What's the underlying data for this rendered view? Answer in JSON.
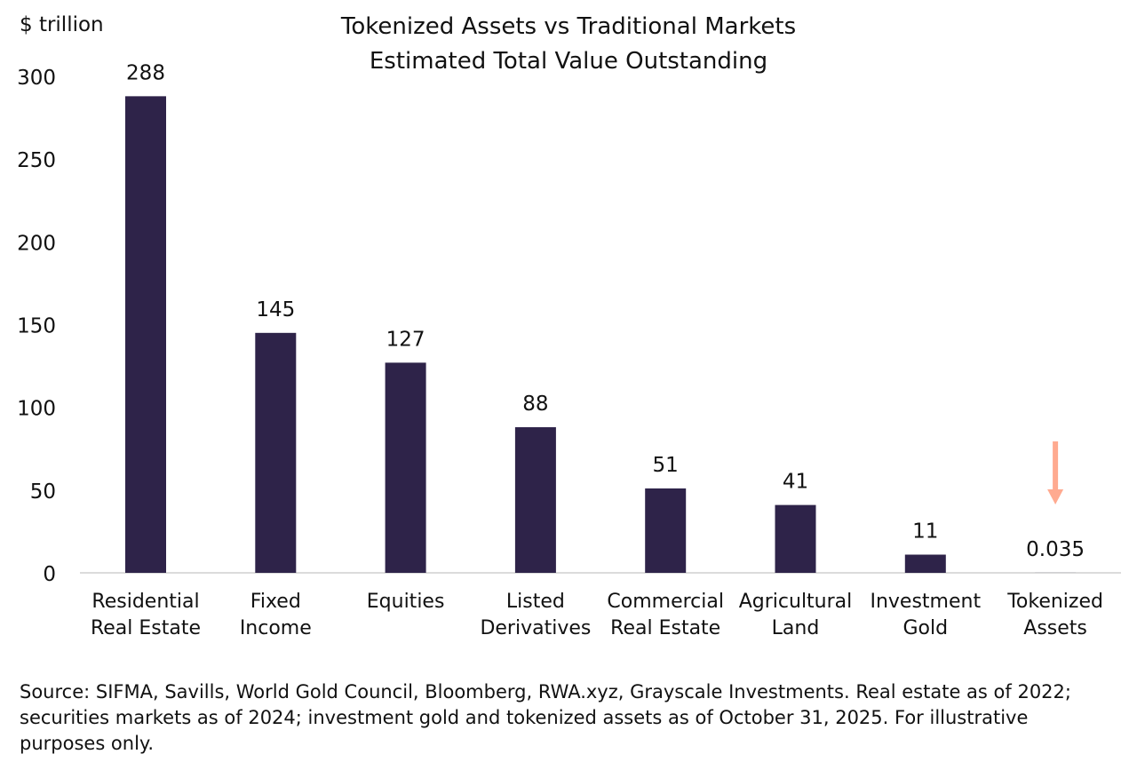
{
  "chart_data": {
    "type": "bar",
    "title": "Tokenized Assets vs Traditional Markets",
    "subtitle": "Estimated Total Value Outstanding",
    "ylabel": "$ trillion",
    "xlabel": "",
    "ylim": [
      0,
      300
    ],
    "yticks": [
      0,
      50,
      100,
      150,
      200,
      250,
      300
    ],
    "grid": false,
    "categories": [
      [
        "Residential",
        "Real Estate"
      ],
      [
        "Fixed",
        "Income"
      ],
      [
        "Equities"
      ],
      [
        "Listed",
        "Derivatives"
      ],
      [
        "Commercial",
        "Real Estate"
      ],
      [
        "Agricultural",
        "Land"
      ],
      [
        "Investment",
        "Gold"
      ],
      [
        "Tokenized",
        "Assets"
      ]
    ],
    "values": [
      288,
      145,
      127,
      88,
      51,
      41,
      11,
      0.035
    ],
    "data_labels": [
      "288",
      "145",
      "127",
      "88",
      "51",
      "41",
      "11",
      "0.035"
    ],
    "annotation": {
      "type": "down-arrow",
      "category_index": 7
    },
    "colors": {
      "bar": "#2E2349",
      "arrow": "#FFAA90",
      "axis": "#CFCFCF"
    }
  },
  "footer": {
    "source": "Source: SIFMA, Savills, World Gold Council, Bloomberg, RWA.xyz, Grayscale Investments. Real estate as of 2022; securities markets as of 2024; investment gold and tokenized assets as of October 31, 2025. For illustrative purposes only."
  }
}
